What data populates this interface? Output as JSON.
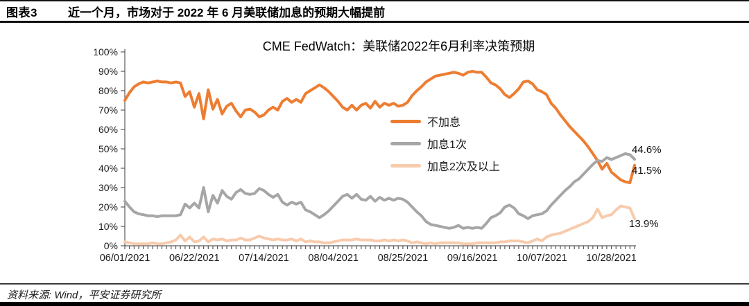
{
  "header": {
    "tag": "图表3",
    "title": "近一个月，市场对于 2022 年 6 月美联储加息的预期大幅提前"
  },
  "footer": {
    "source": "资料来源: Wind，平安证券研究所"
  },
  "chart_data": {
    "type": "line",
    "title": "CME FedWatch：美联储2022年6月利率决策预期",
    "grid": false,
    "legend_position": "center-right",
    "ylim": [
      0,
      100
    ],
    "y_tick_labels": [
      "0%",
      "10%",
      "20%",
      "30%",
      "40%",
      "50%",
      "60%",
      "70%",
      "80%",
      "90%",
      "100%"
    ],
    "x_tick_labels": [
      "06/01/2021",
      "06/22/2021",
      "07/14/2021",
      "08/04/2021",
      "08/25/2021",
      "09/16/2021",
      "10/07/2021",
      "10/28/2021"
    ],
    "x_tick_indices": [
      0,
      15,
      30,
      45,
      60,
      75,
      90,
      105
    ],
    "x_range_note": "daily probabilities, 06/01/2021 - 11/01/2021",
    "series": [
      {
        "name": "不加息",
        "color": "#ED7D31",
        "end_label": "41.5%",
        "values": [
          75,
          79,
          82,
          83.5,
          84.5,
          84,
          84.5,
          85,
          84.5,
          84.5,
          84,
          84.5,
          84,
          77,
          79.5,
          71.5,
          78.5,
          65.5,
          80.5,
          70.5,
          75.5,
          68,
          72,
          73.5,
          69.5,
          66.5,
          70,
          70.5,
          69,
          66.5,
          67.5,
          70,
          71.5,
          70,
          74.5,
          76,
          74,
          75.5,
          74,
          78.5,
          80,
          81.5,
          83,
          81.5,
          79.5,
          77,
          74.5,
          71.5,
          70,
          72.5,
          70,
          72.5,
          73.5,
          71,
          74.5,
          71.5,
          73.5,
          72.5,
          73.5,
          72,
          72.5,
          74,
          77.5,
          80,
          82,
          84.5,
          86,
          87.5,
          88,
          88.5,
          89,
          89.5,
          89,
          88,
          89.5,
          90,
          89.5,
          89.5,
          87,
          84,
          83,
          81,
          78,
          76.5,
          78.5,
          81,
          84.5,
          85,
          83.5,
          80.5,
          79.5,
          78,
          73.5,
          71,
          67.5,
          64.5,
          61.5,
          59,
          56.5,
          54,
          51,
          47.5,
          44,
          39.5,
          42.5,
          38,
          36,
          34,
          33,
          32.5,
          41.5
        ]
      },
      {
        "name": "加息1次",
        "color": "#A6A6A6",
        "end_label": "44.6%",
        "values": [
          23,
          20,
          17.5,
          16.5,
          16,
          15.5,
          15.5,
          15,
          15.5,
          15.5,
          15.5,
          15.5,
          16,
          21.5,
          19.5,
          22,
          19.5,
          30,
          17.5,
          26,
          22,
          28.5,
          25.5,
          24,
          27.5,
          29,
          27,
          26.5,
          27,
          29.5,
          28.5,
          26.5,
          25,
          26.5,
          22.5,
          21,
          22.5,
          21.5,
          22.5,
          18.5,
          17.5,
          16,
          14.5,
          16,
          18,
          20.5,
          23,
          25.5,
          26.5,
          24.5,
          26.5,
          24,
          23.5,
          25.5,
          23,
          25,
          23.5,
          24.5,
          23.5,
          24.5,
          24,
          22.5,
          20,
          17.5,
          15.5,
          12.5,
          11,
          10.5,
          10,
          9.5,
          9,
          9.5,
          10.5,
          9,
          9.5,
          9,
          9.5,
          9,
          11.5,
          14.5,
          15.5,
          17,
          20,
          21,
          19.5,
          16.5,
          15.5,
          14,
          15.5,
          16,
          16.5,
          18,
          21,
          23.5,
          26,
          28.5,
          30.5,
          33,
          34.5,
          37,
          39.5,
          42,
          44,
          43.5,
          45.5,
          44.5,
          45.5,
          46.5,
          47.5,
          47,
          44.6
        ]
      },
      {
        "name": "加息2次及以上",
        "color": "#F8CBAD",
        "end_label": "13.9%",
        "values": [
          2,
          1.5,
          1,
          1,
          1,
          1,
          1.5,
          1,
          1,
          1.5,
          2,
          3,
          5.5,
          2.5,
          4.5,
          2,
          2.5,
          4.5,
          2,
          3.5,
          3,
          3.5,
          2.5,
          3,
          3,
          4,
          3,
          3,
          4,
          5,
          4,
          3.5,
          3,
          3.5,
          3,
          3,
          3.5,
          2.5,
          3.5,
          2,
          2.5,
          2,
          2,
          1.5,
          1.5,
          2,
          2.5,
          3,
          3,
          3,
          3.5,
          3,
          3,
          3,
          2.5,
          2.5,
          3,
          2.5,
          3,
          2.5,
          3,
          2.5,
          1.5,
          2,
          1.5,
          1,
          1.5,
          1,
          1.5,
          1.5,
          1.5,
          1.5,
          1.5,
          1,
          1,
          1,
          1.5,
          1.5,
          1.5,
          1.5,
          1.5,
          2,
          2,
          2.5,
          2.5,
          2.5,
          2,
          1.5,
          2.5,
          3.5,
          2.5,
          4.5,
          5.5,
          6,
          6.5,
          7.5,
          8.5,
          9.5,
          10.5,
          11.5,
          12.5,
          14.5,
          19,
          14.5,
          15.5,
          16,
          18.5,
          20.5,
          20,
          19.5,
          13.9
        ]
      }
    ]
  }
}
